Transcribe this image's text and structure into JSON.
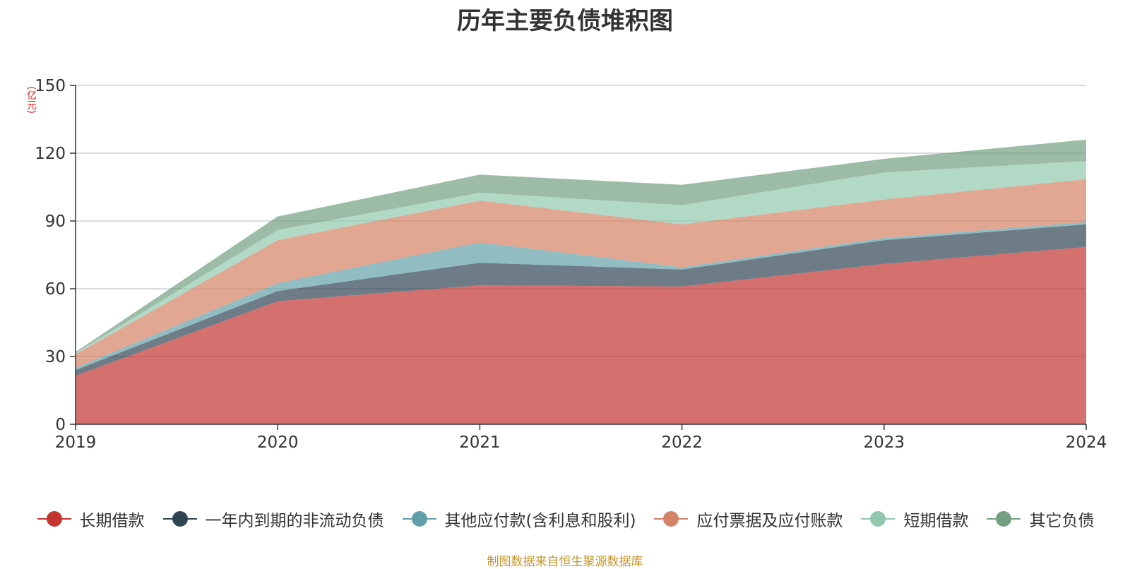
{
  "chart_data": {
    "type": "area",
    "stacked": true,
    "title": "历年主要负债堆积图",
    "ylabel": "(亿元)",
    "xlabel": "",
    "categories": [
      "2019",
      "2020",
      "2021",
      "2022",
      "2023",
      "2024"
    ],
    "ylim": [
      0,
      150
    ],
    "yticks": [
      0,
      30,
      60,
      90,
      120,
      150
    ],
    "grid": true,
    "legend_position": "bottom",
    "series": [
      {
        "name": "长期借款",
        "color": "#c23531",
        "values": [
          21.5,
          54.5,
          61.5,
          61,
          71,
          78.5
        ]
      },
      {
        "name": "一年内到期的非流动负债",
        "color": "#2f4554",
        "values": [
          2.5,
          4.5,
          10,
          7.5,
          10.5,
          10
        ]
      },
      {
        "name": "其他应付款(含利息和股利)",
        "color": "#61a0a8",
        "values": [
          1,
          3.5,
          9,
          1,
          1,
          1
        ]
      },
      {
        "name": "应付票据及应付账款",
        "color": "#d48265",
        "values": [
          6,
          19,
          18.5,
          19,
          17,
          19
        ]
      },
      {
        "name": "短期借款",
        "color": "#91c7ae",
        "values": [
          0.5,
          4.5,
          3.5,
          8.5,
          12,
          8
        ]
      },
      {
        "name": "其它负债",
        "color": "#749f83",
        "values": [
          0.5,
          6,
          8,
          9,
          6,
          9.5
        ]
      }
    ]
  },
  "source_note": "制图数据来自恒生聚源数据库"
}
